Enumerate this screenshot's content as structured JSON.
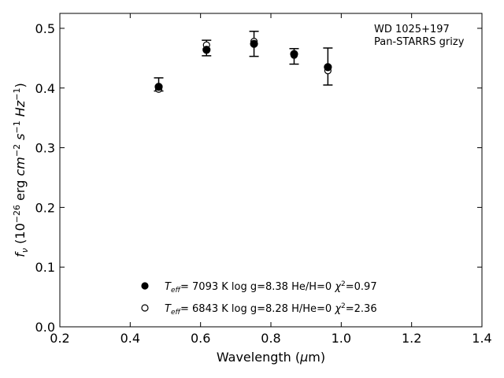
{
  "chart_data": {
    "type": "scatter",
    "xlabel": "Wavelength (μm)",
    "ylabel": "f_ν (10^−26 erg cm^−2 s^−1 Hz^−1)",
    "xlim": [
      0.2,
      1.4
    ],
    "ylim": [
      0.0,
      0.525
    ],
    "xticks": [
      0.2,
      0.4,
      0.6,
      0.8,
      1.0,
      1.2,
      1.4
    ],
    "xtick_labels": [
      "0.2",
      "0.4",
      "0.6",
      "0.8",
      "1.0",
      "1.2",
      "1.4"
    ],
    "yticks": [
      0.0,
      0.1,
      0.2,
      0.3,
      0.4,
      0.5
    ],
    "ytick_labels": [
      "0.0",
      "0.1",
      "0.2",
      "0.3",
      "0.4",
      "0.5"
    ],
    "grid": false,
    "annotation": {
      "line1": "WD 1025+197",
      "line2": "Pan-STARRS grizy"
    },
    "observed": {
      "x": [
        0.481,
        0.617,
        0.752,
        0.866,
        0.962
      ],
      "y": [
        0.406,
        0.467,
        0.474,
        0.453,
        0.436
      ],
      "yerr": [
        0.011,
        0.013,
        0.021,
        0.013,
        0.031
      ]
    },
    "series": [
      {
        "name": "Teff= 7093 K log g=8.38 He/H=0 χ2=0.97",
        "marker": "filled-circle",
        "x": [
          0.481,
          0.617,
          0.752,
          0.866,
          0.962
        ],
        "y": [
          0.402,
          0.464,
          0.474,
          0.457,
          0.435
        ]
      },
      {
        "name": "Teff= 6843 K log g=8.28 H/He=0 χ2=2.36",
        "marker": "open-circle",
        "x": [
          0.481,
          0.617,
          0.752,
          0.866,
          0.962
        ],
        "y": [
          0.398,
          0.472,
          0.478,
          0.455,
          0.429
        ]
      }
    ],
    "legend": {
      "placement": "lower-center",
      "entries": [
        {
          "teff_prefix": "T",
          "teff_sub": "eff",
          "teff_value": "=  7093 K",
          "logg": "log g=8.38",
          "comp": "He/H=0",
          "chi_prefix": "χ",
          "chi_sup": "2",
          "chi_value": "=0.97"
        },
        {
          "teff_prefix": "T",
          "teff_sub": "eff",
          "teff_value": "=  6843 K",
          "logg": "log g=8.28",
          "comp": "H/He=0",
          "chi_prefix": "χ",
          "chi_sup": "2",
          "chi_value": "=2.36"
        }
      ]
    }
  }
}
